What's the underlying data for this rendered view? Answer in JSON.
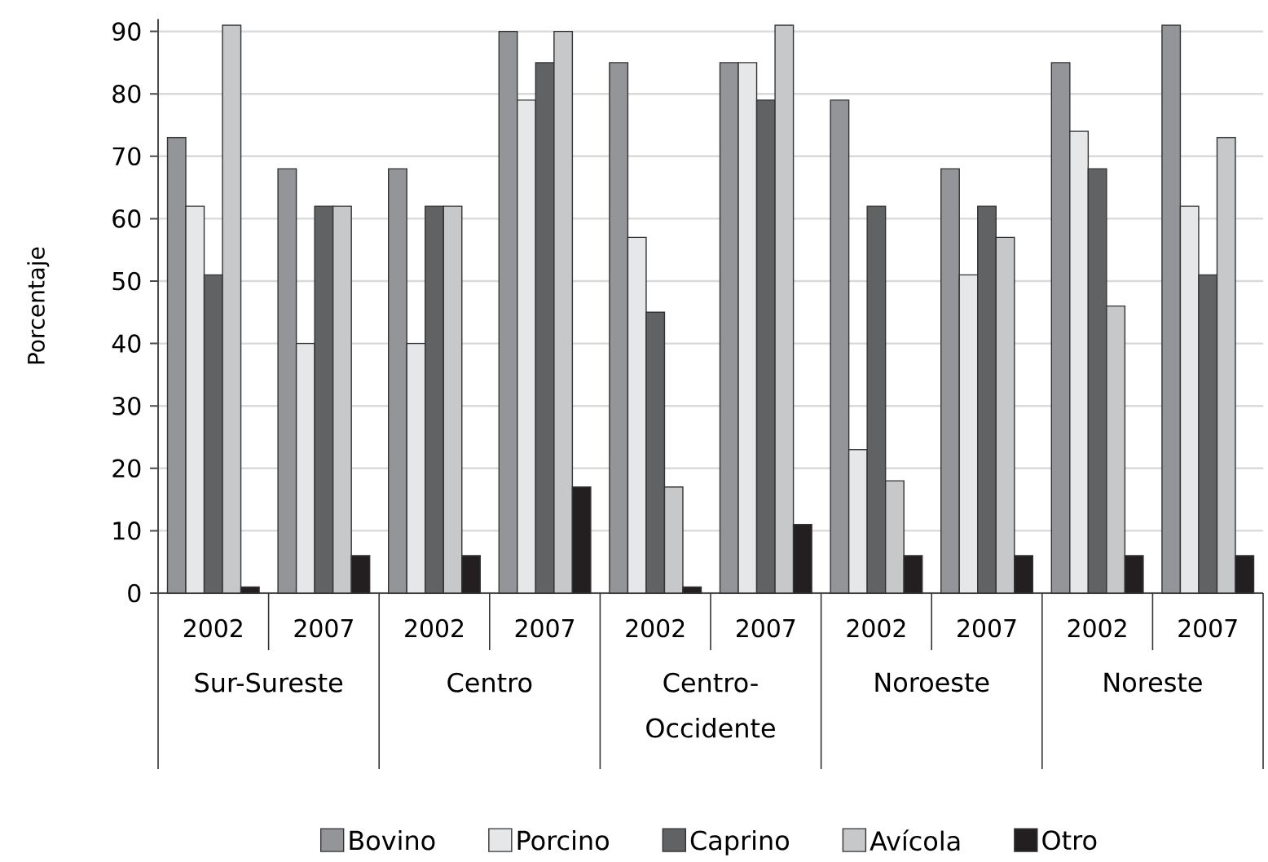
{
  "chart_data": {
    "type": "bar",
    "ylabel": "Porcentaje",
    "categories": [
      "2002",
      "2007",
      "2002",
      "2007",
      "2002",
      "2007",
      "2002",
      "2007",
      "2002",
      "2007"
    ],
    "annotations": [
      "Sur-Sureste",
      "Centro",
      "Centro-Occidente",
      "Noroeste",
      "Noreste"
    ],
    "series": [
      {
        "name": "Bovino",
        "color": "#939598",
        "values": [
          73,
          68,
          68,
          90,
          85,
          85,
          79,
          68,
          85,
          91
        ]
      },
      {
        "name": "Porcino",
        "color": "#e6e7e8",
        "values": [
          62,
          40,
          40,
          79,
          57,
          85,
          23,
          51,
          74,
          62
        ]
      },
      {
        "name": "Caprino",
        "color": "#616264",
        "values": [
          51,
          62,
          62,
          85,
          45,
          79,
          62,
          62,
          68,
          51
        ]
      },
      {
        "name": "Avícola",
        "color": "#c7c8ca",
        "values": [
          91,
          62,
          62,
          90,
          17,
          91,
          18,
          57,
          46,
          73
        ]
      },
      {
        "name": "Otro",
        "color": "#231f20",
        "values": [
          1,
          6,
          6,
          17,
          1,
          11,
          6,
          6,
          6,
          6
        ]
      }
    ],
    "ylim": [
      0,
      92
    ],
    "yticks": [
      0,
      10,
      20,
      30,
      40,
      50,
      60,
      70,
      80,
      90
    ],
    "grid": "y",
    "legend": "bottom"
  }
}
